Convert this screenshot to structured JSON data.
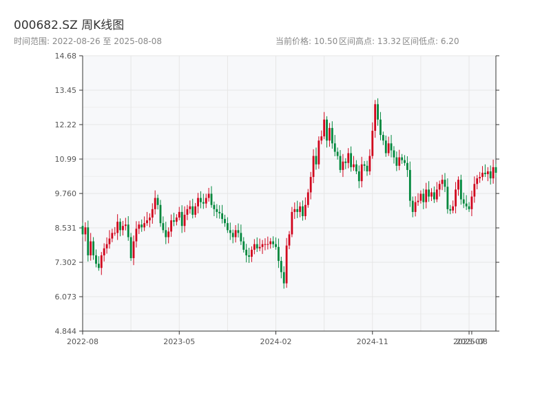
{
  "header": {
    "title": "000682.SZ 周K线图",
    "range_text": "时间范围: 2022-08-26 至 2025-08-08",
    "current_price_text": "当前价格: 10.50",
    "high_text": "区间高点: 13.32",
    "low_text": "区间低点: 6.20"
  },
  "chart_data": {
    "type": "candlestick",
    "title": "000682.SZ 周K线图",
    "y_ticks": [
      "14.68",
      "13.45",
      "12.22",
      "10.99",
      "9.760",
      "8.531",
      "7.302",
      "6.073",
      "4.844"
    ],
    "ylim": [
      4.844,
      14.68
    ],
    "x_ticks": [
      {
        "label": "2022-08",
        "index": 0
      },
      {
        "label": "2023-05",
        "index": 36
      },
      {
        "label": "2024-02",
        "index": 72
      },
      {
        "label": "2024-11",
        "index": 108
      },
      {
        "label": "2025-07",
        "index": 144
      },
      {
        "label": "2025-08",
        "index": 145
      }
    ],
    "colors": {
      "up": "#d0021b",
      "down": "#00873c",
      "grid": "#e6e6e6",
      "plot_bg": "#f7f8fa",
      "axis": "#333333"
    },
    "grid": true,
    "closes": [
      8.3,
      8.55,
      7.55,
      8.05,
      7.55,
      7.25,
      7.1,
      7.55,
      7.8,
      7.95,
      8.15,
      8.35,
      8.35,
      8.75,
      8.45,
      8.6,
      8.65,
      8.2,
      7.45,
      8.05,
      8.5,
      8.65,
      8.55,
      8.7,
      8.8,
      8.9,
      9.2,
      9.6,
      9.35,
      8.7,
      8.45,
      8.2,
      8.4,
      8.8,
      8.75,
      8.9,
      9.1,
      8.6,
      9.0,
      9.2,
      9.3,
      9.0,
      9.3,
      9.6,
      9.45,
      9.4,
      9.6,
      9.75,
      9.35,
      9.2,
      9.1,
      9.05,
      8.85,
      8.7,
      8.45,
      8.35,
      8.2,
      8.45,
      8.35,
      8.05,
      7.75,
      7.55,
      7.5,
      7.75,
      7.95,
      7.8,
      7.85,
      7.95,
      7.95,
      7.95,
      8.05,
      7.95,
      7.85,
      7.35,
      6.95,
      6.55,
      7.9,
      8.3,
      9.1,
      9.2,
      9.1,
      9.3,
      8.95,
      9.35,
      9.8,
      10.35,
      11.1,
      10.8,
      11.65,
      11.8,
      12.4,
      11.65,
      12.1,
      11.55,
      11.25,
      11.1,
      10.6,
      10.9,
      10.85,
      11.2,
      10.7,
      10.8,
      10.55,
      10.2,
      10.8,
      10.75,
      10.55,
      11.1,
      12.0,
      12.95,
      12.4,
      11.85,
      11.65,
      11.2,
      11.55,
      11.3,
      11.05,
      10.75,
      11.05,
      10.95,
      10.85,
      10.6,
      9.5,
      9.1,
      9.45,
      9.5,
      9.75,
      9.45,
      9.9,
      9.65,
      9.8,
      9.55,
      9.9,
      10.1,
      10.25,
      10.0,
      9.2,
      9.15,
      9.3,
      9.9,
      10.25,
      9.55,
      9.4,
      9.3,
      9.2,
      9.65,
      10.1,
      10.3,
      10.35,
      10.5,
      10.45,
      10.55,
      10.3,
      10.7,
      10.5
    ],
    "opens_first": 8.6
  }
}
